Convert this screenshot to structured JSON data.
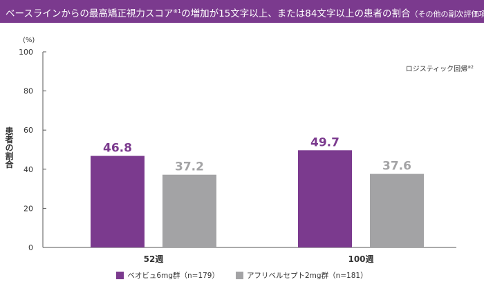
{
  "header": {
    "title_main": "ベースラインからの最高矯正視力スコア",
    "title_sup": "※1",
    "title_rest": "の増加が15文字以上、または84文字以上の患者の割合",
    "title_small": "（その他の副次評価項目）"
  },
  "chart_data": {
    "type": "bar",
    "categories": [
      "52週",
      "100週"
    ],
    "series": [
      {
        "name": "ベオビュ6mg群（n=179）",
        "values": [
          46.8,
          49.7
        ],
        "color": "#7b3a8e"
      },
      {
        "name": "アフリベルセプト2mg群（n=181）",
        "values": [
          37.2,
          37.6
        ],
        "color": "#a3a3a5"
      }
    ],
    "value_labels": [
      "46.8",
      "49.7",
      "37.2",
      "37.6"
    ],
    "ylabel": "患者の割合",
    "yunit": "(%)",
    "ylim": [
      0,
      100
    ],
    "yticks": [
      0,
      20,
      40,
      60,
      80,
      100
    ],
    "ytick_labels": [
      "0",
      "20",
      "40",
      "60",
      "80",
      "100"
    ],
    "annotation": "ロジスティック回帰",
    "annotation_sup": "※2",
    "grid": false,
    "legend_position": "bottom"
  },
  "colors": {
    "accent": "#7b3a8e",
    "comparator": "#a3a3a5",
    "axis": "#555555"
  }
}
